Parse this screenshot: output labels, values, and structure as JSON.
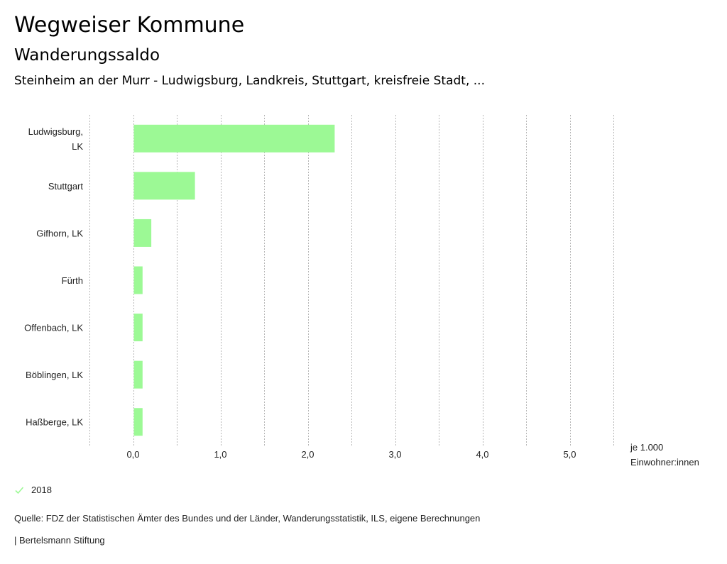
{
  "header": {
    "title": "Wegweiser Kommune",
    "subtitle": "Wanderungssaldo",
    "region": "Steinheim an der Murr - Ludwigsburg, Landkreis, Stuttgart, kreisfreie Stadt, ..."
  },
  "chart_data": {
    "type": "bar",
    "orientation": "horizontal",
    "categories": [
      [
        "Ludwigsburg,",
        "LK"
      ],
      [
        "Stuttgart"
      ],
      [
        "Gifhorn, LK"
      ],
      [
        "Fürth"
      ],
      [
        "Offenbach, LK"
      ],
      [
        "Böblingen, LK"
      ],
      [
        "Haßberge, LK"
      ]
    ],
    "series": [
      {
        "name": "2018",
        "values": [
          2.3,
          0.7,
          0.2,
          0.1,
          0.1,
          0.1,
          0.1
        ],
        "color": "#9cf995"
      }
    ],
    "xlim": [
      -0.5,
      5.5
    ],
    "x_ticks": [
      0,
      1,
      2,
      3,
      4,
      5
    ],
    "x_tick_labels": [
      "0,0",
      "1,0",
      "2,0",
      "3,0",
      "4,0",
      "5,0"
    ],
    "grid_step": 0.5,
    "grid": true,
    "xlabel": [
      "je 1.000",
      "Einwohner:innen"
    ],
    "legend_position": "bottom-left"
  },
  "legend": {
    "label": "2018",
    "icon": "check-icon",
    "color": "#9cf995"
  },
  "footer": {
    "source": "Quelle: FDZ der Statistischen Ämter des Bundes und der Länder, Wanderungsstatistik, ILS, eigene Berechnungen",
    "credit": "| Bertelsmann Stiftung"
  }
}
